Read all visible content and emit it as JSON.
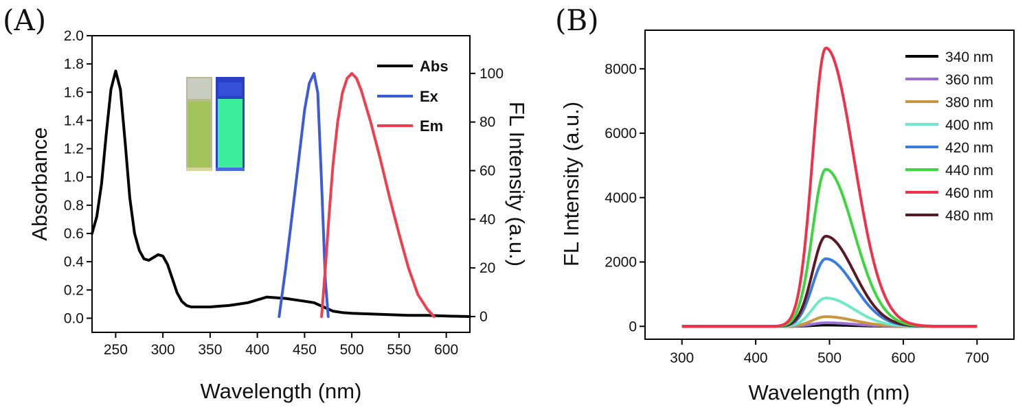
{
  "panels": {
    "a_label": "(A)",
    "b_label": "(B)"
  },
  "chart_data": [
    {
      "type": "line",
      "panel": "A",
      "xlabel": "Wavelength (nm)",
      "ylabel": "Absorbance",
      "y2label": "FL Intensity (a.u.)",
      "xlim": [
        225,
        625
      ],
      "ylim": [
        -0.1,
        2.0
      ],
      "y2lim": [
        -6.5,
        115.5
      ],
      "xticks": [
        250,
        300,
        350,
        400,
        450,
        500,
        550,
        600
      ],
      "yticks": [
        0.0,
        0.2,
        0.4,
        0.6,
        0.8,
        1.0,
        1.2,
        1.4,
        1.6,
        1.8,
        2.0
      ],
      "y2ticks": [
        0,
        20,
        40,
        60,
        80,
        100
      ],
      "legend_position": "top-right",
      "inset": "photo of two cuvettes (daylight and UV illumination)",
      "series": [
        {
          "name": "Abs",
          "axis": "left",
          "color": "#000000",
          "x": [
            225,
            230,
            235,
            240,
            245,
            250,
            255,
            260,
            265,
            270,
            275,
            280,
            285,
            290,
            295,
            300,
            305,
            310,
            315,
            320,
            325,
            330,
            340,
            350,
            360,
            370,
            380,
            390,
            400,
            410,
            420,
            430,
            440,
            450,
            460,
            470,
            480,
            490,
            500,
            520,
            540,
            560,
            580,
            600,
            625
          ],
          "y": [
            0.6,
            0.72,
            0.95,
            1.3,
            1.62,
            1.75,
            1.62,
            1.25,
            0.85,
            0.6,
            0.48,
            0.42,
            0.41,
            0.43,
            0.45,
            0.44,
            0.38,
            0.28,
            0.18,
            0.12,
            0.09,
            0.08,
            0.08,
            0.08,
            0.085,
            0.09,
            0.1,
            0.11,
            0.13,
            0.15,
            0.145,
            0.14,
            0.13,
            0.12,
            0.11,
            0.08,
            0.05,
            0.04,
            0.035,
            0.03,
            0.025,
            0.02,
            0.02,
            0.015,
            0.012
          ]
        },
        {
          "name": "Ex",
          "axis": "right",
          "color": "#3b5bdb",
          "x": [
            423,
            430,
            440,
            450,
            455,
            460,
            464,
            468,
            472,
            475
          ],
          "y": [
            0,
            20,
            52,
            85,
            96,
            100,
            92,
            55,
            15,
            0
          ]
        },
        {
          "name": "Em",
          "axis": "right",
          "color": "#f03e4e",
          "x": [
            468,
            472,
            476,
            480,
            485,
            490,
            495,
            500,
            505,
            510,
            520,
            530,
            540,
            550,
            560,
            570,
            580,
            587
          ],
          "y": [
            0,
            20,
            42,
            62,
            80,
            92,
            98,
            100,
            98,
            93,
            80,
            65,
            49,
            34,
            20,
            9,
            3,
            0
          ]
        }
      ]
    },
    {
      "type": "line",
      "panel": "B",
      "xlabel": "Wavelength (nm)",
      "ylabel": "FL Intensity (a.u.)",
      "xlim": [
        250,
        750
      ],
      "ylim": [
        -400,
        9200
      ],
      "xticks": [
        300,
        400,
        500,
        600,
        700
      ],
      "yticks": [
        0,
        2000,
        4000,
        6000,
        8000
      ],
      "legend_position": "top-right",
      "peak_x": 495,
      "series": [
        {
          "name": "340 nm",
          "color": "#000000",
          "peak": 40
        },
        {
          "name": "360 nm",
          "color": "#9b6fd6",
          "peak": 110
        },
        {
          "name": "380 nm",
          "color": "#c8963e",
          "peak": 300
        },
        {
          "name": "400 nm",
          "color": "#6fe8c8",
          "peak": 880
        },
        {
          "name": "420 nm",
          "color": "#3a7be0",
          "peak": 2100
        },
        {
          "name": "440 nm",
          "color": "#3ed63e",
          "peak": 4880
        },
        {
          "name": "460 nm",
          "color": "#f0314b",
          "peak": 8650
        },
        {
          "name": "480 nm",
          "color": "#5a1a24",
          "peak": 2800
        }
      ]
    }
  ]
}
